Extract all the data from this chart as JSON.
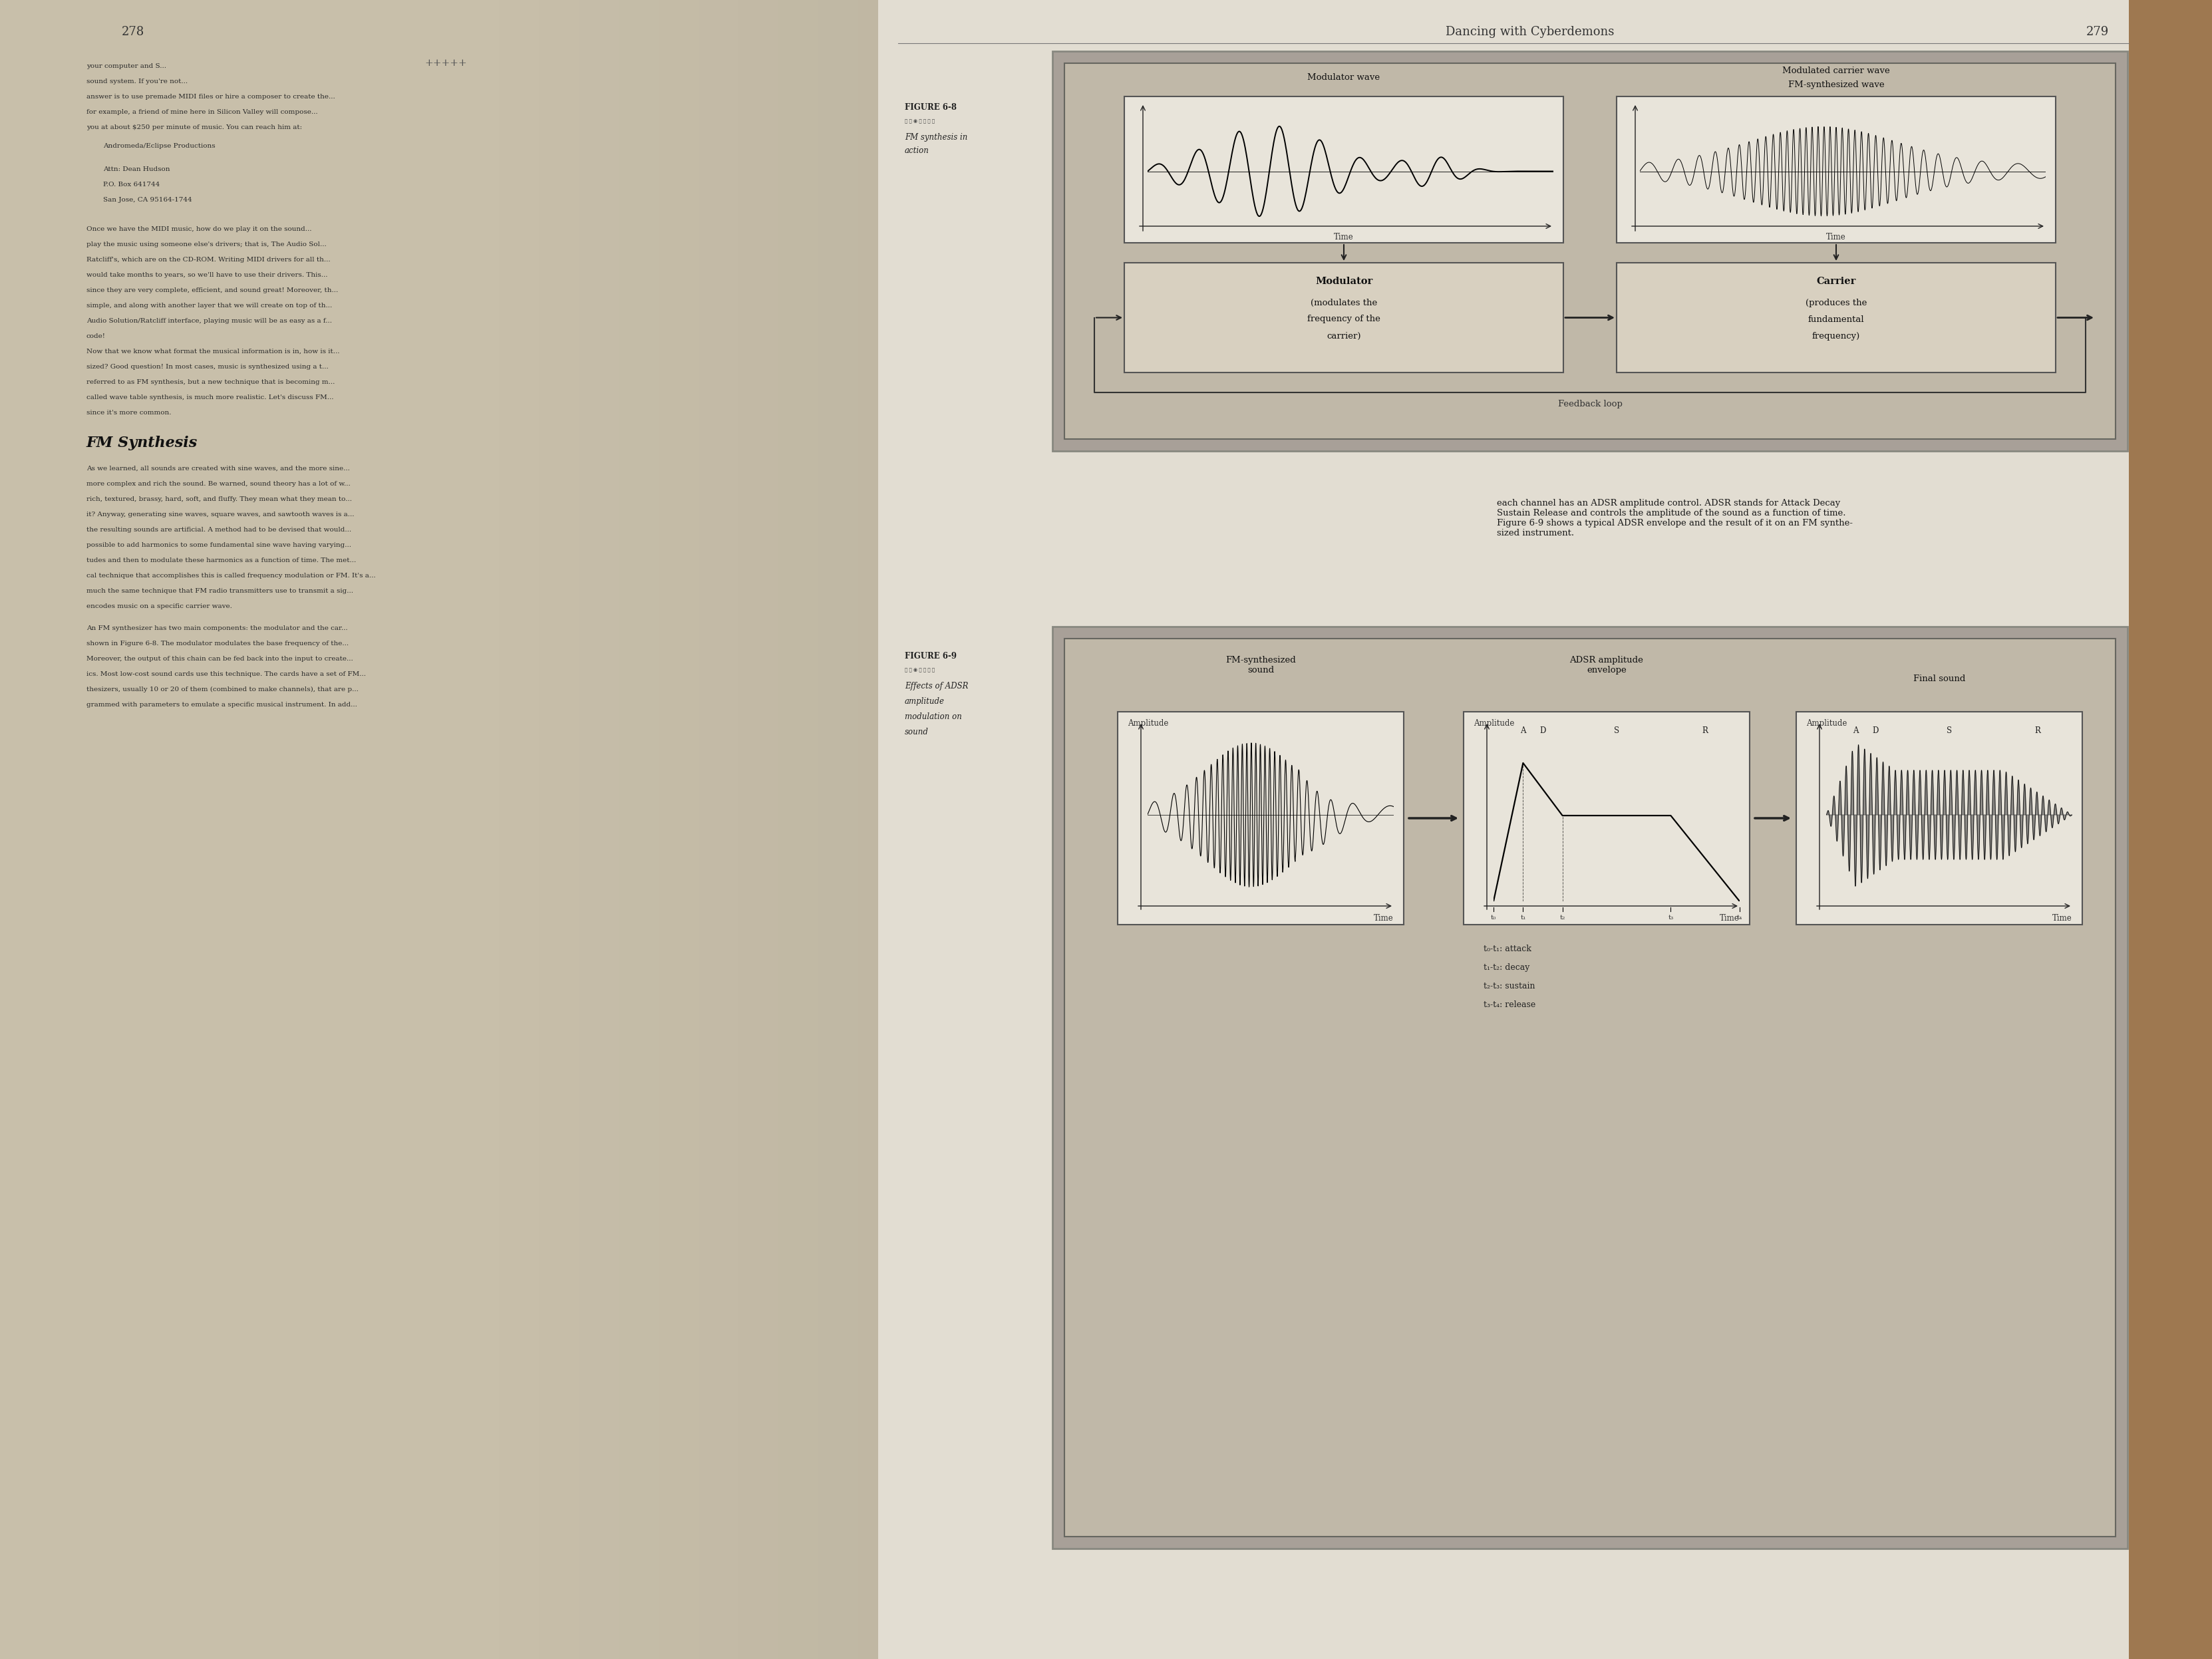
{
  "page_bg_left": "#ccc4b0",
  "page_bg_right": "#e2ddd2",
  "wood_bg": "#a07850",
  "diagram_outer_bg": "#b0a898",
  "diagram_inner_bg": "#c0b8a8",
  "box_white": "#f0ece2",
  "box_gray": "#d8d0c0",
  "border_dark": "#444444",
  "text_dark": "#1a1a1a",
  "text_mid": "#333333",
  "header_title": "Dancing with Cyberdemons",
  "page_num": "279",
  "fig8_caption_title": "FIGURE 6-8",
  "fig8_caption_body": "FM synthesis in\naction",
  "fig9_caption_title": "FIGURE 6-9",
  "fig9_caption_body": "Effects of ADSR\namplitude\nmodulation on\nsound",
  "fig8_mod_wave_label": "Modulator wave",
  "fig8_fm_wave_label1": "Modulated carrier wave",
  "fig8_fm_wave_label2": "FM-synthesized wave",
  "fig8_modulator_label": "Modulator\n(modulates the\nfrequency of the\ncarrier)",
  "fig8_carrier_label": "Carrier\n(produces the\nfundamental\nfrequency)",
  "fig8_feedback": "Feedback loop",
  "fig9_panel1_title": "FM-synthesized\nsound",
  "fig9_panel2_title": "ADSR amplitude\nenvelope",
  "fig9_panel3_title": "Final sound",
  "amplitude_label": "Amplitude",
  "time_label": "Time",
  "adsr_t_labels": [
    "t₀",
    "t₁",
    "t₂",
    "t₃",
    "t₄"
  ],
  "adsr_legend": [
    "t₀–t₁: attack",
    "t₁–t₂: decay",
    "t₂–t∈3: sustain",
    "t₃–t₄: release"
  ],
  "adsr_legend2": [
    "t₀-t₁: attack",
    "t₁-t₂: decay",
    "t₂-t₃: sustain",
    "t₃-t₄: release"
  ]
}
